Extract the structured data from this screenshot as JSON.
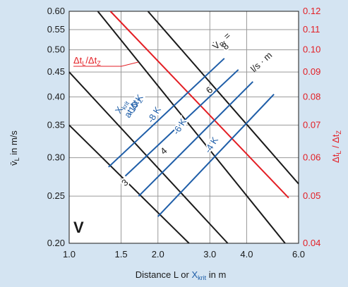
{
  "chart_data": {
    "type": "line",
    "scale": "log-log",
    "background_color": "#d4e4f2",
    "panel_color": "#ffffff",
    "colors": {
      "black": "#1a1a1a",
      "red": "#e31e24",
      "blue": "#1f5ea8"
    },
    "x_axis": {
      "label_prefix": "Distance L or ",
      "label_x": "X",
      "label_x_sub": "krit",
      "label_suffix": " in m",
      "range": [
        1.0,
        6.0
      ],
      "ticks": [
        1.0,
        1.5,
        2.0,
        3.0,
        4.0,
        6.0
      ],
      "tick_labels": [
        "1.0",
        "1.5",
        "2.0",
        "3.0",
        "4.0",
        "6.0"
      ]
    },
    "y_left": {
      "label_main": "v̄",
      "label_sub": "L",
      "label_suffix": " in m/s",
      "range": [
        0.2,
        0.6
      ],
      "ticks": [
        0.2,
        0.25,
        0.3,
        0.35,
        0.4,
        0.45,
        0.5,
        0.55,
        0.6
      ],
      "tick_labels": [
        "0.20",
        "0.25",
        "0.30",
        "0.35",
        "0.40",
        "0.45",
        "0.50",
        "0.55",
        "0.60"
      ]
    },
    "y_right": {
      "label": "Δt",
      "label_sub1": "L",
      "label_mid": " / Δt",
      "label_sub2": "Z",
      "range": [
        0.04,
        0.12
      ],
      "ticks": [
        0.04,
        0.05,
        0.06,
        0.07,
        0.08,
        0.09,
        0.1,
        0.11,
        0.12
      ],
      "tick_labels": [
        "0.04",
        "0.05",
        "0.06",
        "0.07",
        "0.08",
        "0.09",
        "0.10",
        "0.11",
        "0.12"
      ]
    },
    "series": [
      {
        "name": "3",
        "color": "black",
        "points": [
          [
            1.0,
            0.35
          ],
          [
            2.55,
            0.2
          ]
        ],
        "label_at": [
          1.55,
          0.266
        ],
        "label_angle": -42
      },
      {
        "name": "4",
        "color": "black",
        "points": [
          [
            1.0,
            0.45
          ],
          [
            3.45,
            0.2
          ]
        ],
        "label_at": [
          2.1,
          0.309
        ],
        "label_angle": -42
      },
      {
        "name": "6",
        "color": "black",
        "points": [
          [
            1.25,
            0.6
          ],
          [
            5.4,
            0.2
          ]
        ],
        "label_at": [
          3.0,
          0.412
        ],
        "label_angle": -42
      },
      {
        "name": "8",
        "color": "black",
        "points": [
          [
            1.85,
            0.6
          ],
          [
            6.0,
            0.265
          ]
        ],
        "label_at": [
          3.4,
          0.507
        ],
        "label_angle": -42
      },
      {
        "name": "",
        "color": "red",
        "points": [
          [
            1.38,
            0.6
          ],
          [
            5.55,
            0.248
          ]
        ]
      },
      {
        "name": "-10 K",
        "color": "blue",
        "points": [
          [
            1.36,
            0.287
          ],
          [
            3.36,
            0.48
          ]
        ],
        "label_at": [
          1.68,
          0.385
        ],
        "label_angle": -58
      },
      {
        "name": "-8 K",
        "color": "blue",
        "points": [
          [
            1.55,
            0.275
          ],
          [
            3.75,
            0.455
          ]
        ],
        "label_at": [
          1.95,
          0.367
        ],
        "label_angle": -58
      },
      {
        "name": "-6 K",
        "color": "blue",
        "points": [
          [
            1.72,
            0.25
          ],
          [
            4.2,
            0.43
          ]
        ],
        "label_at": [
          2.38,
          0.347
        ],
        "label_angle": -58
      },
      {
        "name": "-4 K",
        "color": "blue",
        "points": [
          [
            2.0,
            0.227
          ],
          [
            4.95,
            0.405
          ]
        ],
        "label_at": [
          3.05,
          0.318
        ],
        "label_angle": -58
      }
    ],
    "annotations": {
      "vpr_symbol": "V̇",
      "vpr_sub": "Pr",
      "vpr_eq": " =",
      "vpr_units": "l/s · m",
      "ratio_main": "Δt",
      "ratio_sub1": "L",
      "ratio_mid": "/Δt",
      "ratio_sub2": "Z",
      "xkrit_main": "X",
      "xkrit_sub": "krit",
      "at_main": "at Δt",
      "at_sub": "Z",
      "panel_letter": "V"
    }
  }
}
